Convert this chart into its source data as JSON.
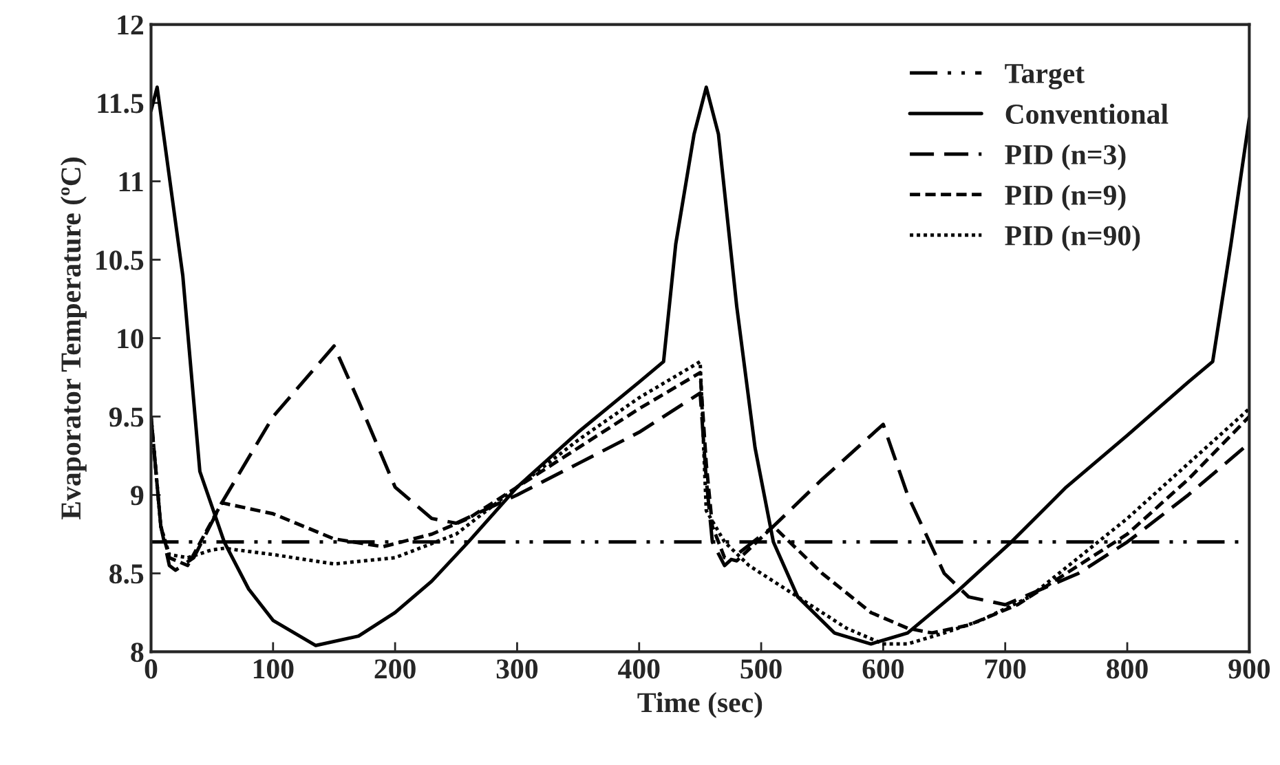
{
  "chart_data": {
    "type": "line",
    "xlabel": "Time (sec)",
    "ylabel": "Evaporator Temperature (ºC)",
    "xlim": [
      0,
      900
    ],
    "xticks": [
      0,
      100,
      200,
      300,
      400,
      500,
      600,
      700,
      800,
      900
    ],
    "ylim": [
      8,
      12
    ],
    "yticks": [
      8,
      8.5,
      9,
      9.5,
      10,
      10.5,
      11,
      11.5,
      12
    ],
    "grid": false,
    "legend": "top right",
    "marker": "none",
    "series": [
      {
        "name": "Target",
        "color": "#000000",
        "line_style": "dashdotdot",
        "x": [
          0,
          900
        ],
        "values": [
          8.7,
          8.7
        ]
      },
      {
        "name": "Conventional",
        "color": "#000000",
        "line_style": "solid",
        "x": [
          0,
          5,
          26,
          40,
          60,
          80,
          100,
          135,
          170,
          200,
          230,
          260,
          300,
          350,
          400,
          420,
          430,
          445,
          455,
          465,
          480,
          495,
          510,
          530,
          560,
          590,
          620,
          660,
          705,
          750,
          800,
          850,
          870,
          885,
          900
        ],
        "values": [
          11.45,
          11.6,
          10.4,
          9.15,
          8.7,
          8.4,
          8.2,
          8.04,
          8.1,
          8.25,
          8.45,
          8.7,
          9.05,
          9.4,
          9.72,
          9.85,
          10.6,
          11.3,
          11.6,
          11.3,
          10.2,
          9.3,
          8.7,
          8.35,
          8.12,
          8.05,
          8.12,
          8.38,
          8.7,
          9.05,
          9.38,
          9.72,
          9.85,
          10.6,
          11.4
        ]
      },
      {
        "name": "PID (n=3)",
        "color": "#000000",
        "line_style": "longdash",
        "x": [
          0,
          8,
          15,
          20,
          35,
          58,
          100,
          150,
          170,
          200,
          230,
          250,
          300,
          350,
          400,
          450,
          455,
          460,
          470,
          480,
          510,
          550,
          600,
          620,
          650,
          670,
          700,
          760,
          800,
          850,
          900
        ],
        "values": [
          9.5,
          8.8,
          8.55,
          8.52,
          8.6,
          8.95,
          9.5,
          9.95,
          9.6,
          9.05,
          8.85,
          8.82,
          9.0,
          9.2,
          9.4,
          9.65,
          9.1,
          8.7,
          8.55,
          8.62,
          8.8,
          9.1,
          9.45,
          9.0,
          8.5,
          8.35,
          8.3,
          8.5,
          8.7,
          9.0,
          9.33
        ]
      },
      {
        "name": "PID (n=9)",
        "color": "#000000",
        "line_style": "dashed",
        "x": [
          0,
          8,
          15,
          30,
          58,
          100,
          150,
          190,
          230,
          260,
          300,
          350,
          400,
          450,
          455,
          460,
          470,
          480,
          510,
          550,
          590,
          620,
          640,
          670,
          710,
          750,
          800,
          850,
          900
        ],
        "values": [
          9.5,
          8.8,
          8.6,
          8.55,
          8.95,
          8.88,
          8.72,
          8.67,
          8.75,
          8.85,
          9.05,
          9.3,
          9.55,
          9.78,
          9.2,
          8.8,
          8.6,
          8.58,
          8.8,
          8.5,
          8.25,
          8.15,
          8.12,
          8.17,
          8.3,
          8.5,
          8.75,
          9.1,
          9.5
        ]
      },
      {
        "name": "PID (n=90)",
        "color": "#000000",
        "line_style": "dotted",
        "x": [
          0,
          8,
          15,
          30,
          50,
          60,
          100,
          150,
          200,
          250,
          300,
          350,
          400,
          450,
          455,
          470,
          490,
          530,
          570,
          600,
          620,
          650,
          680,
          720,
          760,
          800,
          850,
          900
        ],
        "values": [
          9.5,
          8.8,
          8.62,
          8.6,
          8.65,
          8.66,
          8.62,
          8.56,
          8.6,
          8.75,
          9.05,
          9.35,
          9.62,
          9.85,
          8.9,
          8.7,
          8.55,
          8.35,
          8.15,
          8.05,
          8.05,
          8.12,
          8.2,
          8.35,
          8.6,
          8.85,
          9.2,
          9.55
        ]
      }
    ]
  }
}
